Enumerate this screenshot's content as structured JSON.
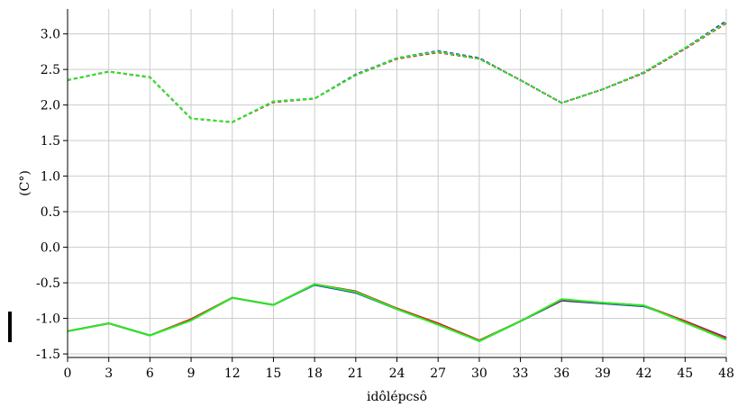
{
  "chart_data": {
    "type": "line",
    "title": "",
    "xlabel": "idôlépcsô",
    "ylabel": "(C°)",
    "xlim": [
      0,
      48
    ],
    "ylim": [
      -1.55,
      3.35
    ],
    "xticks": [
      0,
      3,
      6,
      9,
      12,
      15,
      18,
      21,
      24,
      27,
      30,
      33,
      36,
      39,
      42,
      45,
      48
    ],
    "yticks": [
      -1.5,
      -1.0,
      -0.5,
      0.0,
      0.5,
      1.0,
      1.5,
      2.0,
      2.5,
      3.0
    ],
    "ytick_labels": [
      "-1.5",
      "-1.0",
      "-0.5",
      "0.0",
      "0.5",
      "1.0",
      "1.5",
      "2.0",
      "2.5",
      "3.0"
    ],
    "grid": true,
    "x": [
      0,
      3,
      6,
      9,
      12,
      15,
      18,
      21,
      24,
      27,
      30,
      33,
      36,
      39,
      42,
      45,
      48
    ],
    "series": [
      {
        "color": "#1f2fd0",
        "dash": "4,3",
        "values": [
          2.35,
          2.47,
          2.39,
          1.81,
          1.76,
          2.05,
          2.09,
          2.43,
          2.66,
          2.76,
          2.66,
          2.35,
          2.03,
          2.22,
          2.46,
          2.8,
          3.18
        ]
      },
      {
        "color": "#e0201a",
        "dash": "4,3",
        "values": [
          2.35,
          2.47,
          2.39,
          1.81,
          1.76,
          2.04,
          2.09,
          2.42,
          2.65,
          2.74,
          2.65,
          2.35,
          2.03,
          2.22,
          2.45,
          2.79,
          3.15
        ]
      },
      {
        "color": "#22ee22",
        "dash": "4,3",
        "values": [
          2.35,
          2.47,
          2.39,
          1.81,
          1.76,
          2.05,
          2.09,
          2.42,
          2.66,
          2.75,
          2.65,
          2.35,
          2.03,
          2.22,
          2.46,
          2.8,
          3.16
        ]
      },
      {
        "color": "#1f2fd0",
        "dash": "",
        "values": [
          -1.18,
          -1.07,
          -1.24,
          -1.02,
          -0.71,
          -0.81,
          -0.53,
          -0.64,
          -0.87,
          -1.08,
          -1.32,
          -1.04,
          -0.75,
          -0.79,
          -0.83,
          -1.04,
          -1.27
        ]
      },
      {
        "color": "#e0201a",
        "dash": "",
        "values": [
          -1.18,
          -1.07,
          -1.24,
          -1.01,
          -0.71,
          -0.81,
          -0.52,
          -0.62,
          -0.86,
          -1.07,
          -1.31,
          -1.04,
          -0.74,
          -0.78,
          -0.82,
          -1.04,
          -1.28
        ]
      },
      {
        "color": "#22ee22",
        "dash": "",
        "values": [
          -1.18,
          -1.07,
          -1.24,
          -1.03,
          -0.71,
          -0.81,
          -0.52,
          -0.63,
          -0.87,
          -1.09,
          -1.32,
          -1.04,
          -0.73,
          -0.78,
          -0.82,
          -1.06,
          -1.3
        ]
      }
    ]
  }
}
